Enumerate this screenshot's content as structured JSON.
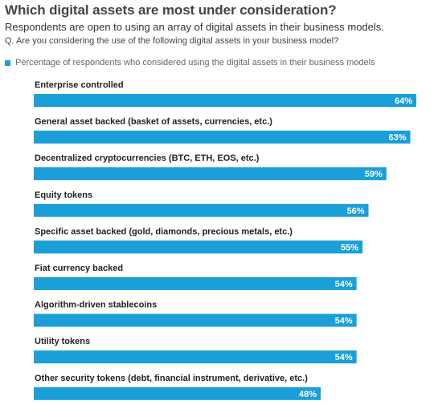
{
  "header": {
    "title": "Which digital assets are most under consideration?",
    "subtitle": "Respondents are open to using an array of digital assets in their business models.",
    "question": "Q.  Are you considering the use of the following digital assets in your business model?"
  },
  "colors": {
    "bar": "#1a9fd9",
    "label": "#222222",
    "value_text": "#ffffff"
  },
  "chart_data": {
    "type": "bar",
    "orientation": "horizontal",
    "legend": {
      "position": "top-left",
      "entries": [
        "Percentage of respondents who considered using the digital assets in their business models"
      ]
    },
    "series": [
      {
        "name": "Percentage of respondents who considered using the digital assets in their business models",
        "values": [
          64,
          63,
          59,
          56,
          55,
          54,
          54,
          54,
          48
        ]
      }
    ],
    "categories": [
      "Enterprise controlled",
      "General asset backed (basket of assets, currencies, etc.)",
      "Decentralized cryptocurrencies (BTC, ETH, EOS, etc.)",
      "Equity tokens",
      "Specific asset backed (gold, diamonds, precious metals, etc.)",
      "Fiat currency backed",
      "Algorithm-driven stablecoins",
      "Utility tokens",
      "Other security tokens (debt, financial instrument, derivative, etc.)"
    ],
    "value_labels": [
      "64%",
      "63%",
      "59%",
      "56%",
      "55%",
      "54%",
      "54%",
      "54%",
      "48%"
    ],
    "xlim": [
      0,
      64
    ],
    "grid": false
  }
}
